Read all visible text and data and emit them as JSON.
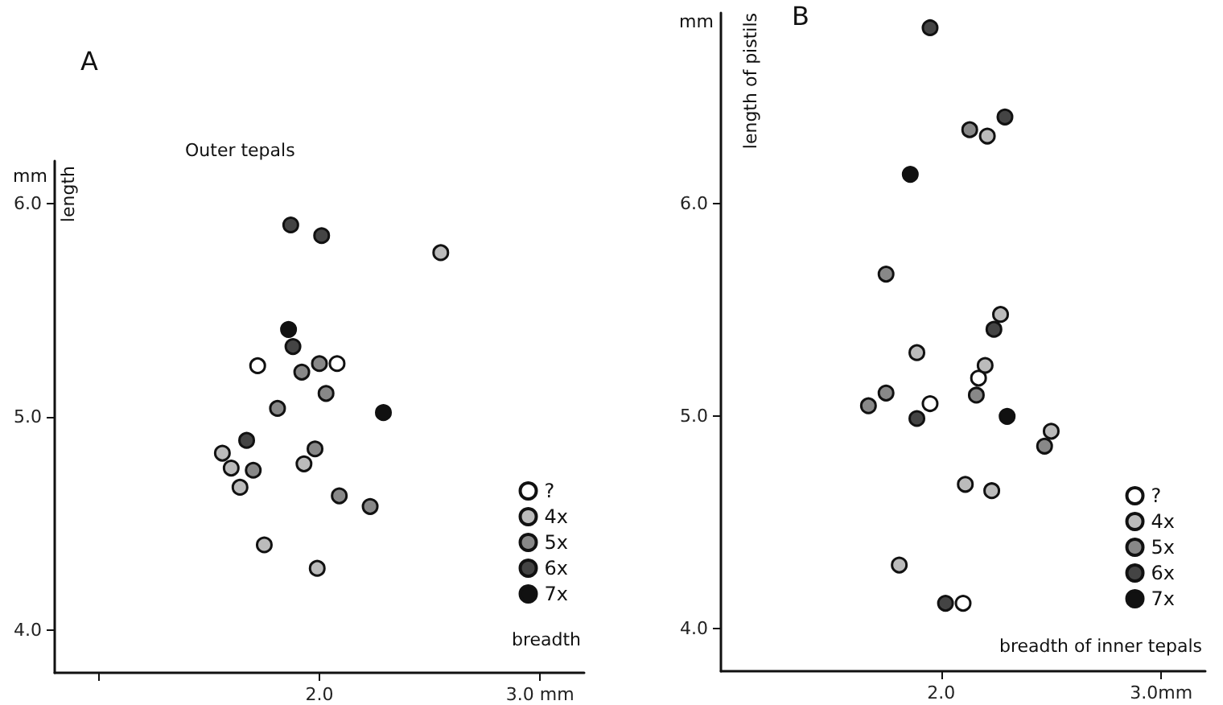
{
  "chart_data": [
    {
      "type": "scatter",
      "title": "A",
      "subtitle": "Outer tepals",
      "xlabel": "breadth",
      "ylabel": "length",
      "annotations": [
        "mm"
      ],
      "xlim": [
        0.8,
        3.2
      ],
      "ylim": [
        3.8,
        6.2
      ],
      "xticks": [
        {
          "value": 1,
          "label": null
        },
        {
          "value": 2,
          "label": "2.0"
        },
        {
          "value": 3,
          "label": "3.0 mm"
        }
      ],
      "yticks": [
        {
          "value": 4,
          "label": "4.0"
        },
        {
          "value": 5,
          "label": "5.0"
        },
        {
          "value": 6,
          "label": "6.0"
        }
      ],
      "grid": false,
      "legend": "bottom right",
      "marker": "circle",
      "series": [
        {
          "name": "?",
          "color": "#ffffff",
          "x": [
            1.72,
            2.08
          ],
          "values": [
            5.24,
            5.25
          ]
        },
        {
          "name": "4x",
          "color": "#bbbbbb",
          "x": [
            2.55,
            1.56,
            1.6,
            1.64,
            1.93,
            1.75,
            1.99
          ],
          "values": [
            5.77,
            4.83,
            4.76,
            4.67,
            4.78,
            4.4,
            4.29
          ]
        },
        {
          "name": "5x",
          "color": "#888888",
          "x": [
            1.92,
            2.0,
            2.03,
            1.81,
            1.7,
            1.98,
            2.09,
            2.23
          ],
          "values": [
            5.21,
            5.25,
            5.11,
            5.04,
            4.75,
            4.85,
            4.63,
            4.58
          ]
        },
        {
          "name": "6x",
          "color": "#444444",
          "x": [
            1.87,
            2.01,
            1.88,
            1.67
          ],
          "values": [
            5.9,
            5.85,
            5.33,
            4.89
          ]
        },
        {
          "name": "7x",
          "color": "#111111",
          "x": [
            1.86,
            2.29
          ],
          "values": [
            5.41,
            5.02
          ]
        }
      ]
    },
    {
      "type": "scatter",
      "title": "B",
      "xlabel": "breadth of inner tepals",
      "ylabel": "length of pistils",
      "annotations": [
        "mm"
      ],
      "xlim": [
        1.0,
        3.2
      ],
      "ylim": [
        3.8,
        6.9
      ],
      "xticks": [
        {
          "value": 2,
          "label": "2.0"
        },
        {
          "value": 3,
          "label": "3.0mm"
        }
      ],
      "yticks": [
        {
          "value": 4,
          "label": "4.0"
        },
        {
          "value": 5,
          "label": "5.0"
        },
        {
          "value": 6,
          "label": "6.0"
        }
      ],
      "grid": false,
      "legend": "bottom right",
      "marker": "circle",
      "series": [
        {
          "name": "?",
          "color": "#ffffff",
          "x": [
            2.17,
            1.95,
            2.1
          ],
          "values": [
            5.18,
            5.06,
            4.12
          ]
        },
        {
          "name": "4x",
          "color": "#bbbbbb",
          "x": [
            2.21,
            2.27,
            1.89,
            2.2,
            2.5,
            2.11,
            2.23,
            1.81
          ],
          "values": [
            6.32,
            5.48,
            5.3,
            5.24,
            4.93,
            4.68,
            4.65,
            4.3
          ]
        },
        {
          "name": "5x",
          "color": "#888888",
          "x": [
            2.13,
            1.75,
            2.16,
            1.67,
            1.75,
            2.47
          ],
          "values": [
            6.35,
            5.67,
            5.1,
            5.05,
            5.11,
            4.86
          ]
        },
        {
          "name": "6x",
          "color": "#444444",
          "x": [
            1.95,
            2.29,
            2.24,
            1.89,
            2.02
          ],
          "values": [
            6.83,
            6.41,
            5.41,
            4.99,
            4.12
          ]
        },
        {
          "name": "7x",
          "color": "#111111",
          "x": [
            1.86,
            2.3
          ],
          "values": [
            6.14,
            5.0
          ]
        }
      ]
    }
  ]
}
